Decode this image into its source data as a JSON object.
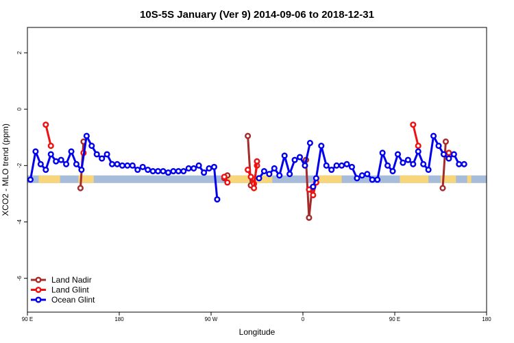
{
  "chart_data": {
    "type": "line",
    "title": "10S-5S January (Ver 9)   2014-09-06 to 2018-12-31",
    "xlabel": "Longitude",
    "ylabel": "XCO2 - MLO trend (ppm)",
    "xlim": [
      90,
      540
    ],
    "ylim": [
      -7.2,
      2.9
    ],
    "x_ticks": [
      {
        "value": 90,
        "label": "90 E"
      },
      {
        "value": 180,
        "label": "180"
      },
      {
        "value": 270,
        "label": "90 W"
      },
      {
        "value": 360,
        "label": "0"
      },
      {
        "value": 450,
        "label": "90 E"
      },
      {
        "value": 540,
        "label": "180"
      }
    ],
    "y_ticks": [
      {
        "value": 2,
        "label": "2"
      },
      {
        "value": 0,
        "label": "0"
      },
      {
        "value": -2,
        "label": "-2"
      },
      {
        "value": -4,
        "label": "-4"
      },
      {
        "value": -6,
        "label": "-6"
      }
    ],
    "legend_position": "bottom-left",
    "land_band": {
      "y_top": -2.35,
      "y_bottom": -2.62,
      "ocean_color": "#a7bcd9",
      "land_color": "#f7d57a"
    },
    "land_segments": [
      [
        101,
        122
      ],
      [
        140,
        155
      ],
      [
        285,
        330
      ],
      [
        373,
        398
      ],
      [
        455,
        483
      ],
      [
        495,
        510
      ],
      [
        521,
        525
      ]
    ],
    "series": [
      {
        "name": "Land Nadir",
        "color": "#a52a2a",
        "segments": [
          [
            [
              142,
              -2.8
            ],
            [
              145,
              -1.15
            ]
          ],
          [
            [
              283,
              -2.45
            ],
            [
              286,
              -2.35
            ]
          ],
          [
            [
              306,
              -0.95
            ],
            [
              309,
              -2.7
            ]
          ],
          [
            [
              363,
              -1.8
            ],
            [
              366,
              -3.85
            ],
            [
              369,
              -2.8
            ]
          ],
          [
            [
              497,
              -2.8
            ],
            [
              500,
              -1.15
            ]
          ]
        ]
      },
      {
        "name": "Land Glint",
        "color": "#ee1111",
        "segments": [
          [
            [
              108,
              -0.55
            ],
            [
              113,
              -1.3
            ]
          ],
          [
            [
              145,
              -1.55
            ]
          ],
          [
            [
              283,
              -2.4
            ],
            [
              286,
              -2.6
            ]
          ],
          [
            [
              306,
              -2.15
            ],
            [
              309,
              -2.4
            ],
            [
              312,
              -2.65
            ],
            [
              315,
              -2.0
            ]
          ],
          [
            [
              312,
              -2.8
            ],
            [
              315,
              -1.85
            ]
          ],
          [
            [
              366,
              -2.85
            ],
            [
              370,
              -3.05
            ],
            [
              373,
              -2.6
            ]
          ],
          [
            [
              468,
              -0.55
            ],
            [
              473,
              -1.3
            ]
          ],
          [
            [
              503,
              -1.55
            ]
          ]
        ]
      },
      {
        "name": "Ocean Glint",
        "color": "#0000ee",
        "segments": [
          [
            [
              93,
              -2.5
            ],
            [
              98,
              -1.5
            ],
            [
              103,
              -1.95
            ],
            [
              108,
              -2.15
            ],
            [
              113,
              -1.6
            ],
            [
              118,
              -1.85
            ],
            [
              123,
              -1.8
            ],
            [
              128,
              -1.95
            ],
            [
              133,
              -1.5
            ],
            [
              138,
              -1.95
            ],
            [
              143,
              -2.15
            ],
            [
              148,
              -0.95
            ],
            [
              153,
              -1.3
            ],
            [
              158,
              -1.6
            ],
            [
              163,
              -1.75
            ],
            [
              168,
              -1.6
            ],
            [
              173,
              -1.95
            ],
            [
              178,
              -1.95
            ],
            [
              183,
              -2.0
            ],
            [
              188,
              -2.0
            ],
            [
              193,
              -2.0
            ],
            [
              198,
              -2.15
            ],
            [
              203,
              -2.05
            ],
            [
              208,
              -2.15
            ],
            [
              213,
              -2.2
            ],
            [
              218,
              -2.2
            ],
            [
              223,
              -2.2
            ],
            [
              228,
              -2.25
            ],
            [
              233,
              -2.2
            ],
            [
              238,
              -2.2
            ],
            [
              243,
              -2.2
            ],
            [
              248,
              -2.1
            ],
            [
              253,
              -2.1
            ],
            [
              258,
              -2.0
            ],
            [
              263,
              -2.25
            ],
            [
              268,
              -2.1
            ],
            [
              273,
              -2.05
            ],
            [
              276,
              -3.2
            ]
          ],
          [
            [
              317,
              -2.45
            ],
            [
              322,
              -2.2
            ],
            [
              327,
              -2.3
            ],
            [
              332,
              -2.1
            ],
            [
              337,
              -2.35
            ],
            [
              342,
              -1.65
            ],
            [
              347,
              -2.3
            ],
            [
              352,
              -1.8
            ],
            [
              357,
              -1.7
            ],
            [
              362,
              -2.0
            ],
            [
              367,
              -1.2
            ]
          ],
          [
            [
              370,
              -2.75
            ],
            [
              373,
              -2.45
            ],
            [
              378,
              -1.3
            ],
            [
              383,
              -2.0
            ],
            [
              388,
              -2.15
            ],
            [
              393,
              -2.0
            ],
            [
              398,
              -2.0
            ],
            [
              403,
              -1.95
            ],
            [
              408,
              -2.05
            ],
            [
              413,
              -2.45
            ],
            [
              418,
              -2.35
            ],
            [
              423,
              -2.3
            ],
            [
              428,
              -2.5
            ],
            [
              433,
              -2.5
            ],
            [
              438,
              -1.55
            ],
            [
              443,
              -2.0
            ],
            [
              448,
              -2.2
            ],
            [
              453,
              -1.6
            ],
            [
              458,
              -1.9
            ],
            [
              463,
              -1.8
            ],
            [
              468,
              -1.95
            ],
            [
              473,
              -1.5
            ],
            [
              478,
              -1.95
            ],
            [
              483,
              -2.15
            ],
            [
              488,
              -0.95
            ],
            [
              493,
              -1.3
            ],
            [
              498,
              -1.6
            ],
            [
              503,
              -1.75
            ],
            [
              508,
              -1.6
            ],
            [
              513,
              -1.95
            ],
            [
              518,
              -1.95
            ]
          ]
        ]
      }
    ]
  }
}
